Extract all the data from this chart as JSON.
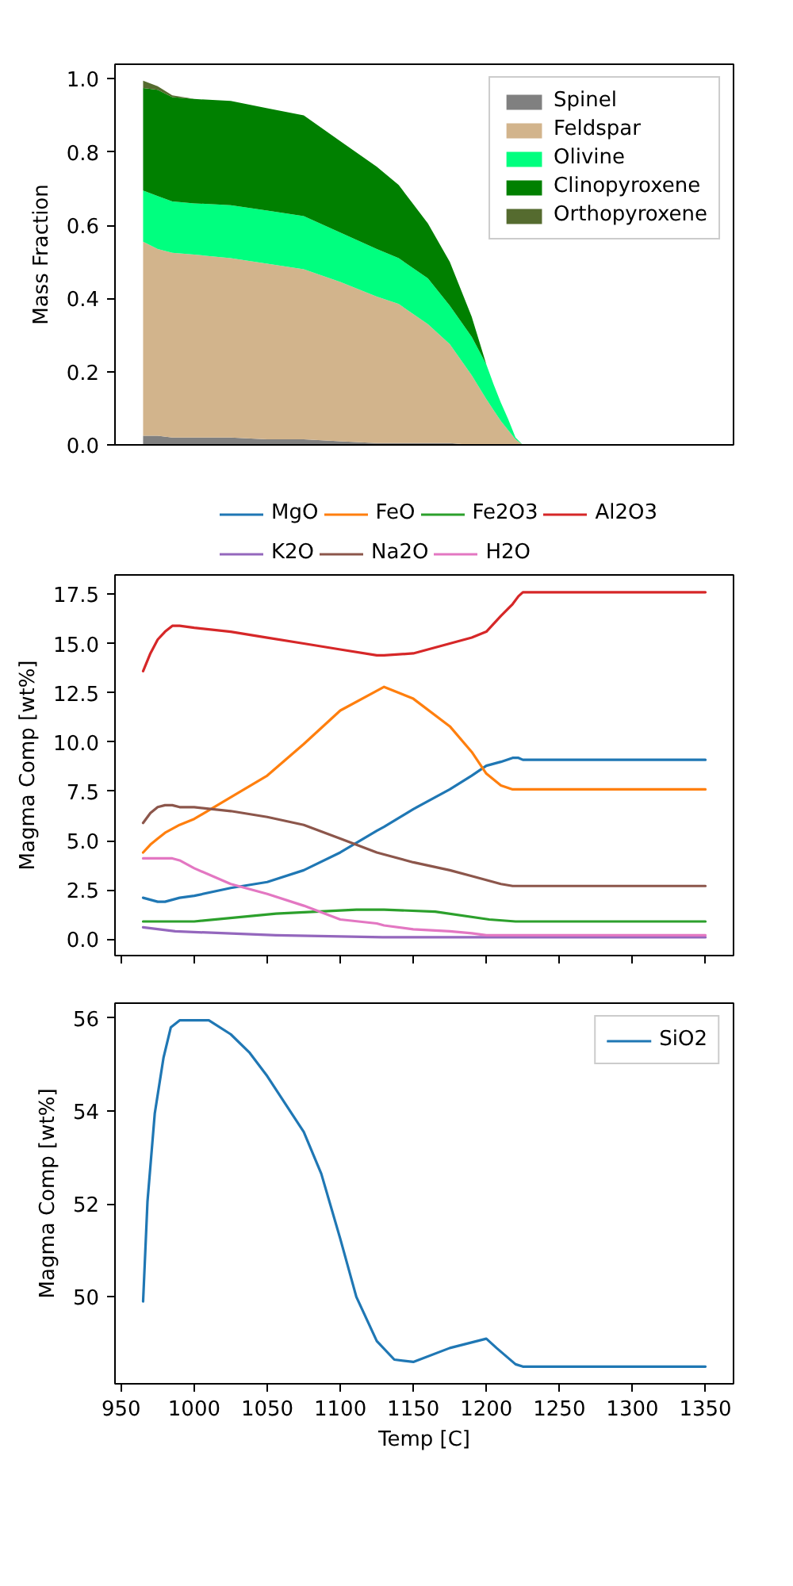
{
  "chart_data": [
    {
      "type": "area",
      "stacked": true,
      "ylabel": "Mass Fraction",
      "x": [
        965,
        975,
        985,
        1000,
        1025,
        1050,
        1075,
        1100,
        1125,
        1140,
        1160,
        1175,
        1190,
        1200,
        1205,
        1210,
        1215,
        1220,
        1225
      ],
      "series": [
        {
          "name": "Spinel",
          "color": "#808080",
          "values": [
            0.025,
            0.025,
            0.02,
            0.02,
            0.02,
            0.015,
            0.015,
            0.01,
            0.005,
            0.005,
            0.005,
            0.005,
            0,
            0,
            0,
            0,
            0,
            0,
            0
          ]
        },
        {
          "name": "Feldspar",
          "color": "#d2b48c",
          "values": [
            0.53,
            0.51,
            0.505,
            0.5,
            0.49,
            0.48,
            0.465,
            0.435,
            0.4,
            0.38,
            0.325,
            0.27,
            0.19,
            0.125,
            0.095,
            0.065,
            0.04,
            0.015,
            0
          ]
        },
        {
          "name": "Olivine",
          "color": "#00ff7f",
          "values": [
            0.14,
            0.145,
            0.14,
            0.14,
            0.145,
            0.145,
            0.145,
            0.135,
            0.13,
            0.125,
            0.125,
            0.105,
            0.105,
            0.095,
            0.07,
            0.05,
            0.03,
            0.005,
            0
          ]
        },
        {
          "name": "Clinopyroxene",
          "color": "#008000",
          "values": [
            0.28,
            0.29,
            0.285,
            0.285,
            0.285,
            0.28,
            0.275,
            0.25,
            0.225,
            0.2,
            0.15,
            0.12,
            0.055,
            0,
            0,
            0,
            0,
            0,
            0
          ]
        },
        {
          "name": "Orthopyroxene",
          "color": "#556b2f",
          "values": [
            0.02,
            0.01,
            0.005,
            0,
            0,
            0,
            0,
            0,
            0,
            0,
            0,
            0,
            0,
            0,
            0,
            0,
            0,
            0,
            0
          ]
        }
      ],
      "xlim": [
        945.75,
        1369.25
      ],
      "ylim": [
        0,
        1.04
      ],
      "yticks": [
        {
          "value": 0,
          "label": "0.0"
        },
        0.2,
        0.4,
        0.6,
        0.8,
        {
          "value": 1,
          "label": "1.0"
        }
      ],
      "legend": "top right",
      "tick_labels": "y"
    },
    {
      "type": "line",
      "ylabel": "Magma Comp [wt%]",
      "x": [
        965,
        970,
        975,
        980,
        985,
        990,
        1000,
        1025,
        1050,
        1075,
        1100,
        1125,
        1130,
        1150,
        1175,
        1190,
        1200,
        1210,
        1218,
        1222,
        1225,
        1350
      ],
      "series": [
        {
          "name": "MgO",
          "color": "#1f77b4",
          "values": [
            2.1,
            2.0,
            1.9,
            1.9,
            2.0,
            2.1,
            2.2,
            2.6,
            2.9,
            3.5,
            4.4,
            5.5,
            5.7,
            6.6,
            7.6,
            8.3,
            8.8,
            9.0,
            9.2,
            9.2,
            9.1,
            9.1
          ]
        },
        {
          "name": "FeO",
          "color": "#ff7f0e",
          "values": [
            4.4,
            4.8,
            5.1,
            5.4,
            5.6,
            5.8,
            6.1,
            7.2,
            8.3,
            9.9,
            11.6,
            12.6,
            12.8,
            12.2,
            10.8,
            9.5,
            8.4,
            7.8,
            7.6,
            7.6,
            7.6,
            7.6
          ]
        },
        {
          "name": "Fe2O3",
          "color": "#2ca02c",
          "x": [
            965,
            1000,
            1056,
            1111,
            1130,
            1165,
            1202,
            1220,
            1350
          ],
          "values": [
            0.9,
            0.9,
            1.3,
            1.5,
            1.5,
            1.4,
            1.0,
            0.9,
            0.9
          ]
        },
        {
          "name": "Al2O3",
          "color": "#d62728",
          "values": [
            13.6,
            14.5,
            15.2,
            15.6,
            15.9,
            15.9,
            15.8,
            15.6,
            15.3,
            15.0,
            14.7,
            14.4,
            14.4,
            14.5,
            15.0,
            15.3,
            15.6,
            16.4,
            17.0,
            17.4,
            17.6,
            17.6
          ]
        },
        {
          "name": "K2O",
          "color": "#9467bd",
          "x": [
            965,
            987,
            1056,
            1129,
            1350
          ],
          "values": [
            0.6,
            0.4,
            0.2,
            0.1,
            0.1
          ]
        },
        {
          "name": "Na2O",
          "color": "#8c564b",
          "values": [
            5.9,
            6.4,
            6.7,
            6.8,
            6.8,
            6.7,
            6.7,
            6.5,
            6.2,
            5.8,
            5.1,
            4.4,
            4.3,
            3.9,
            3.5,
            3.2,
            3.0,
            2.8,
            2.7,
            2.7,
            2.7,
            2.7
          ]
        },
        {
          "name": "H2O",
          "color": "#e377c2",
          "values": [
            4.1,
            4.1,
            4.1,
            4.1,
            4.1,
            4.0,
            3.6,
            2.8,
            2.3,
            1.7,
            1.0,
            0.8,
            0.7,
            0.5,
            0.4,
            0.3,
            0.2,
            0.2,
            0.2,
            0.2,
            0.2,
            0.2
          ]
        }
      ],
      "xlim": [
        945.75,
        1369.25
      ],
      "xticks": [
        950,
        1000,
        1050,
        1100,
        1150,
        1200,
        1250,
        1300,
        1350
      ],
      "ylim": [
        -0.83,
        18.48
      ],
      "yticks": [
        {
          "value": 0,
          "label": "0.0"
        },
        2.5,
        {
          "value": 5,
          "label": "5.0"
        },
        7.5,
        {
          "value": 10,
          "label": "10.0"
        },
        12.5,
        {
          "value": 15,
          "label": "15.0"
        },
        17.5
      ],
      "legend": "top",
      "tick_labels": "y"
    },
    {
      "type": "line",
      "xlabel": "Temp [C]",
      "ylabel": "Magma Comp [wt%]",
      "series": [
        {
          "name": "SiO2",
          "color": "#1f77b4",
          "x": [
            965,
            968,
            973,
            979,
            984,
            990,
            1000,
            1010,
            1025,
            1038,
            1050,
            1075,
            1087,
            1100,
            1111,
            1125,
            1137,
            1150,
            1175,
            1200,
            1207,
            1220,
            1225,
            1350
          ],
          "values": [
            49.9,
            52.05,
            53.95,
            55.15,
            55.8,
            55.95,
            55.95,
            55.95,
            55.65,
            55.25,
            54.75,
            53.55,
            52.65,
            51.25,
            50.0,
            49.05,
            48.65,
            48.6,
            48.9,
            49.1,
            48.9,
            48.55,
            48.5,
            48.5
          ]
        }
      ],
      "xlim": [
        945.75,
        1369.25
      ],
      "xticks": [
        950,
        1000,
        1050,
        1100,
        1150,
        1200,
        1250,
        1300,
        1350
      ],
      "ylim": [
        48.13,
        56.32
      ],
      "yticks": [
        50,
        52,
        54,
        56
      ],
      "legend": "top right"
    }
  ]
}
